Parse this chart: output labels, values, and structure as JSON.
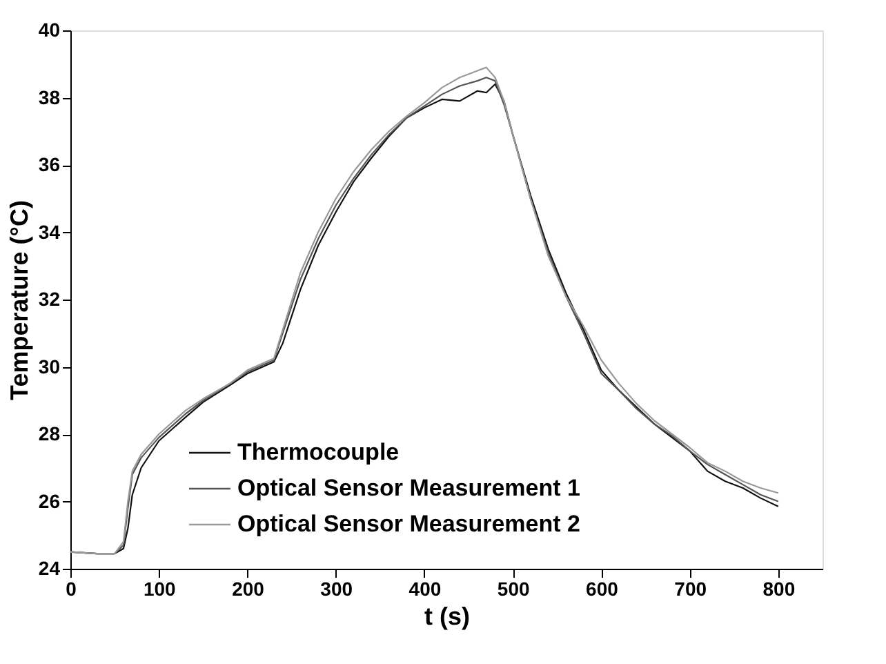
{
  "chart_data": {
    "type": "line",
    "xlabel": "t (s)",
    "ylabel": "Temperature (°C)",
    "x": [
      0,
      30,
      50,
      60,
      65,
      70,
      80,
      100,
      130,
      150,
      180,
      200,
      230,
      240,
      260,
      280,
      300,
      320,
      340,
      360,
      380,
      400,
      420,
      440,
      460,
      470,
      480,
      490,
      500,
      520,
      540,
      560,
      580,
      600,
      620,
      640,
      660,
      680,
      700,
      720,
      740,
      760,
      780,
      800
    ],
    "series": [
      {
        "name": "Thermocouple",
        "color": "#111111",
        "values": [
          24.5,
          24.45,
          24.45,
          24.6,
          25.2,
          26.2,
          27.0,
          27.8,
          28.5,
          28.95,
          29.45,
          29.8,
          30.15,
          30.7,
          32.3,
          33.6,
          34.6,
          35.5,
          36.2,
          36.85,
          37.4,
          37.7,
          37.95,
          37.9,
          38.2,
          38.15,
          38.4,
          37.9,
          36.9,
          35.1,
          33.5,
          32.2,
          31.1,
          29.9,
          29.3,
          28.8,
          28.3,
          27.9,
          27.5,
          26.9,
          26.6,
          26.4,
          26.1,
          25.85
        ]
      },
      {
        "name": "Optical Sensor Measurement 1",
        "color": "#555555",
        "values": [
          24.5,
          24.45,
          24.45,
          24.7,
          25.8,
          26.8,
          27.3,
          27.9,
          28.6,
          29.0,
          29.5,
          29.85,
          30.2,
          31.0,
          32.6,
          33.8,
          34.8,
          35.6,
          36.3,
          36.9,
          37.4,
          37.75,
          38.1,
          38.35,
          38.5,
          38.6,
          38.5,
          37.8,
          36.9,
          35.0,
          33.4,
          32.1,
          31.0,
          29.8,
          29.3,
          28.75,
          28.3,
          27.95,
          27.5,
          27.1,
          26.8,
          26.5,
          26.2,
          26.0
        ]
      },
      {
        "name": "Optical Sensor Measurement 2",
        "color": "#999999",
        "values": [
          24.5,
          24.45,
          24.45,
          24.8,
          26.0,
          26.9,
          27.4,
          28.0,
          28.7,
          29.05,
          29.5,
          29.9,
          30.25,
          31.1,
          32.8,
          34.0,
          35.0,
          35.8,
          36.45,
          37.0,
          37.45,
          37.85,
          38.3,
          38.6,
          38.8,
          38.9,
          38.6,
          37.9,
          36.9,
          35.0,
          33.3,
          32.1,
          31.2,
          30.2,
          29.5,
          28.9,
          28.4,
          28.0,
          27.6,
          27.15,
          26.9,
          26.6,
          26.4,
          26.25
        ]
      }
    ],
    "xlim": [
      0,
      850
    ],
    "xticks": [
      0,
      100,
      200,
      300,
      400,
      500,
      600,
      700,
      800
    ],
    "ylim": [
      24,
      40
    ],
    "yticks": [
      24,
      26,
      28,
      30,
      32,
      34,
      36,
      38,
      40
    ],
    "grid": false,
    "legend": "bottom left",
    "line_style": "solid",
    "marker": "none"
  }
}
